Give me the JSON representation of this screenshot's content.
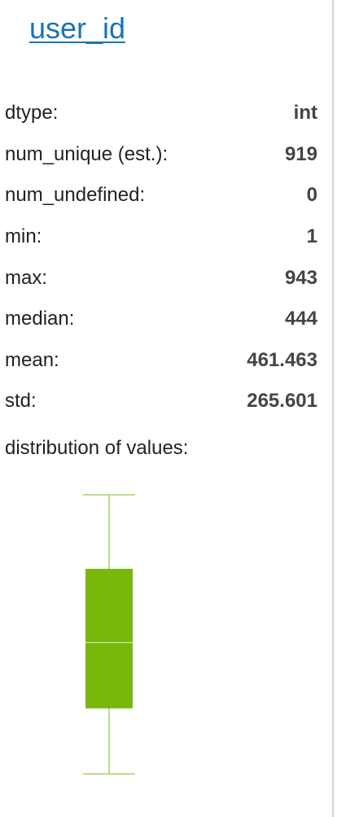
{
  "column": {
    "title": "user_id"
  },
  "stats": [
    {
      "label": "dtype:",
      "value": "int"
    },
    {
      "label": "num_unique (est.):",
      "value": "919"
    },
    {
      "label": "num_undefined:",
      "value": "0"
    },
    {
      "label": "min:",
      "value": "1"
    },
    {
      "label": "max:",
      "value": "943"
    },
    {
      "label": "median:",
      "value": "444"
    },
    {
      "label": "mean:",
      "value": "461.463"
    },
    {
      "label": "std:",
      "value": "265.601"
    }
  ],
  "distribution": {
    "label": "distribution of values:"
  },
  "chart_data": {
    "type": "boxplot",
    "whisker_low": 1,
    "q1": 222,
    "median": 444,
    "q3": 693,
    "whisker_high": 943,
    "box_color": "#77b80a",
    "line_color": "#a5d16a"
  }
}
